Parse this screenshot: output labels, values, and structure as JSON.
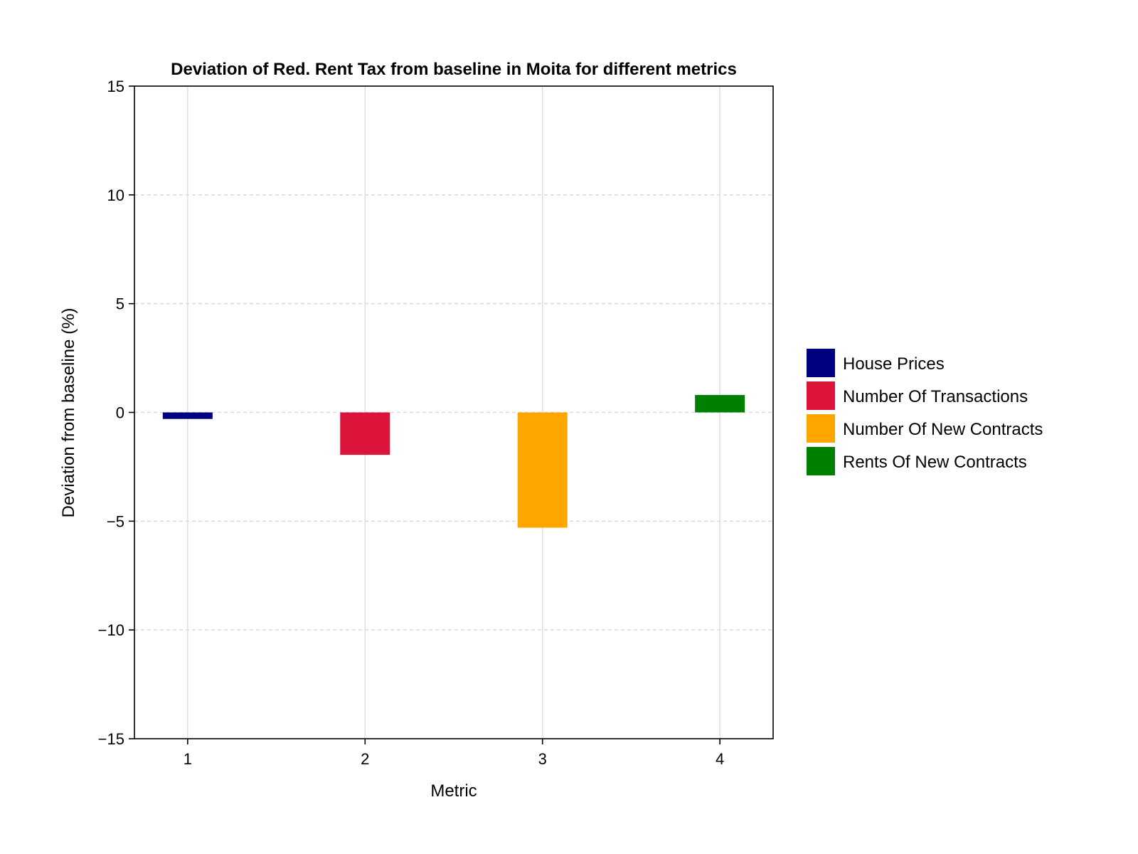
{
  "chart_data": {
    "type": "bar",
    "title": "Deviation of Red. Rent Tax from baseline in Moita for different metrics",
    "xlabel": "Metric",
    "ylabel": "Deviation from baseline (%)",
    "ylim": [
      -15,
      15
    ],
    "yticks": [
      -15,
      -10,
      -5,
      0,
      5,
      10,
      15
    ],
    "ytick_labels": [
      "−15",
      "−10",
      "−5",
      "0",
      "5",
      "10",
      "15"
    ],
    "xlim": [
      0.7,
      4.3
    ],
    "categories": [
      "1",
      "2",
      "3",
      "4"
    ],
    "x": [
      1,
      2,
      3,
      4
    ],
    "grid": true,
    "legend_position": "right",
    "series": [
      {
        "name": "House Prices",
        "x": 1,
        "value": -0.3,
        "color": "#000080"
      },
      {
        "name": "Number Of Transactions",
        "x": 2,
        "value": -1.95,
        "color": "#dc143c"
      },
      {
        "name": "Number Of New Contracts",
        "x": 3,
        "value": -5.3,
        "color": "#ffa500"
      },
      {
        "name": "Rents Of New Contracts",
        "x": 4,
        "value": 0.8,
        "color": "#008000"
      }
    ]
  }
}
